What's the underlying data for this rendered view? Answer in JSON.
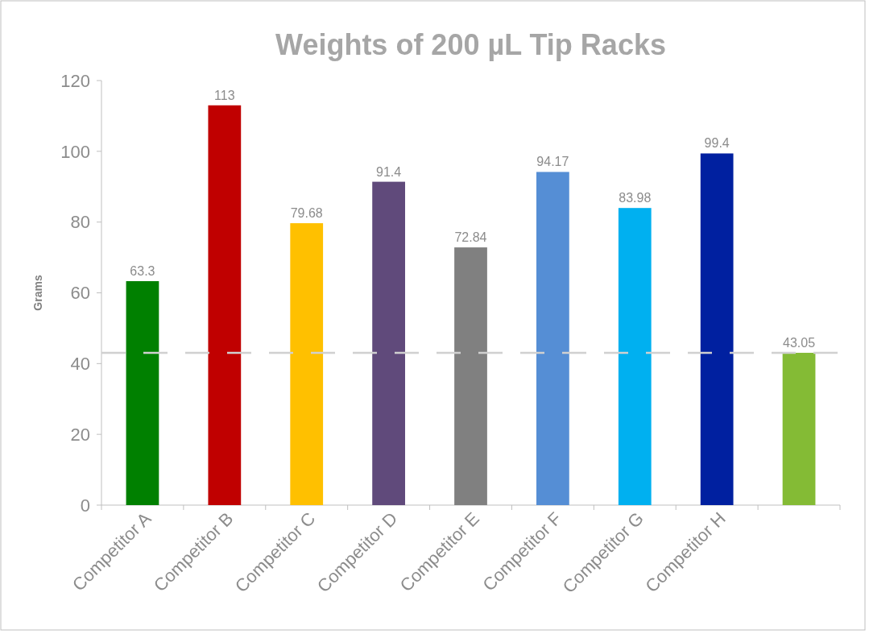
{
  "chart_data": {
    "type": "bar",
    "title": "Weights of 200 µL Tip Racks",
    "ylabel": "Grams",
    "categories": [
      "Competitor A",
      "Competitor B",
      "Competitor C",
      "Competitor D",
      "Competitor E",
      "Competitor F",
      "Competitor G",
      "Competitor H",
      null
    ],
    "values": [
      63.3,
      113,
      79.68,
      91.4,
      72.84,
      94.17,
      83.98,
      99.4,
      43.05
    ],
    "colors": [
      "#008000",
      "#c00000",
      "#ffc000",
      "#604a7b",
      "#808080",
      "#558ed5",
      "#00b0f0",
      "#0020a0",
      "#84bb35"
    ],
    "ylim": [
      0,
      120
    ],
    "yticks": [
      0,
      20,
      40,
      60,
      80,
      100,
      120
    ],
    "grid": false,
    "data_labels": true,
    "ref_lines": [
      {
        "axis": "y",
        "value": 43.05,
        "color": "#d0d0d0",
        "line_style": "dashed"
      }
    ]
  }
}
